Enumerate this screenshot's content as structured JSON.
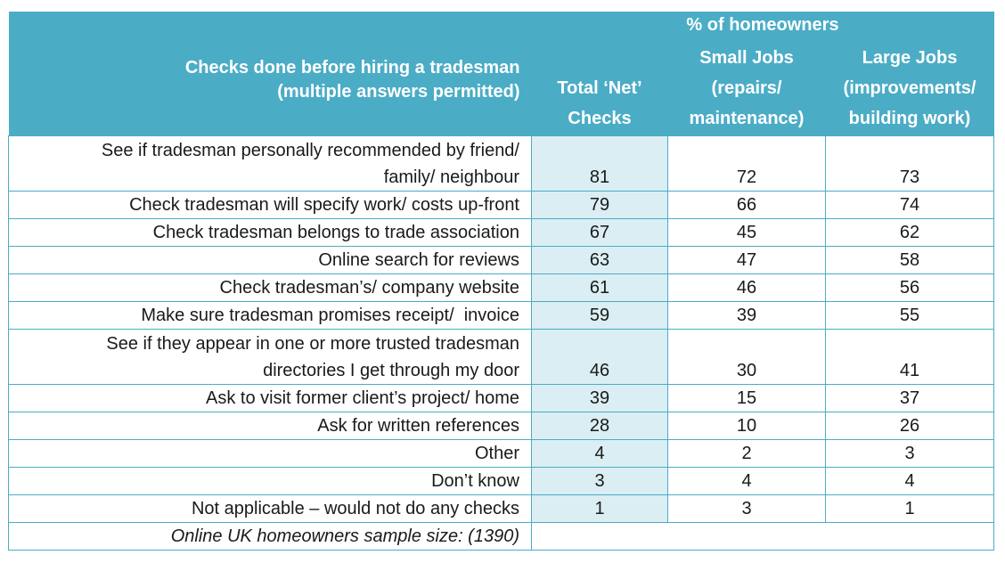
{
  "header": {
    "group_label": "% of homeowners",
    "row_label_line1": "Checks done before hiring a tradesman",
    "row_label_line2": "(multiple answers permitted)",
    "col_net_line1": "Total ‘Net’",
    "col_net_line2": "Checks",
    "col_small_line1": "Small Jobs",
    "col_small_line2": "(repairs/",
    "col_small_line3": "maintenance)",
    "col_large_line1": "Large Jobs",
    "col_large_line2": "(improvements/",
    "col_large_line3": "building work)"
  },
  "rows": [
    {
      "label1": "See if tradesman personally recommended by friend/",
      "label2": "family/ neighbour",
      "net": "81",
      "small": "72",
      "large": "73"
    },
    {
      "label1": "Check tradesman will specify work/ costs up-front",
      "net": "79",
      "small": "66",
      "large": "74"
    },
    {
      "label1": "Check tradesman belongs to trade association",
      "net": "67",
      "small": "45",
      "large": "62"
    },
    {
      "label1": "Online search for reviews",
      "net": "63",
      "small": "47",
      "large": "58"
    },
    {
      "label1": "Check tradesman’s/ company website",
      "net": "61",
      "small": "46",
      "large": "56"
    },
    {
      "label1": "Make sure tradesman promises receipt/  invoice",
      "net": "59",
      "small": "39",
      "large": "55"
    },
    {
      "label1": "See if they appear in one or more trusted tradesman",
      "label2": "directories I get through my door",
      "net": "46",
      "small": "30",
      "large": "41"
    },
    {
      "label1": "Ask to visit former client’s project/ home",
      "net": "39",
      "small": "15",
      "large": "37"
    },
    {
      "label1": "Ask for written references",
      "net": "28",
      "small": "10",
      "large": "26"
    },
    {
      "label1": "Other",
      "net": "4",
      "small": "2",
      "large": "3"
    },
    {
      "label1": "Don’t know",
      "net": "3",
      "small": "4",
      "large": "4"
    },
    {
      "label1": "Not applicable – would not do any checks",
      "net": "1",
      "small": "3",
      "large": "1"
    }
  ],
  "footer": {
    "note": "Online UK homeowners sample size: (1390)"
  },
  "colors": {
    "header_bg": "#4bacc6",
    "net_column_bg": "#daeef3",
    "border": "#4bacc6"
  }
}
